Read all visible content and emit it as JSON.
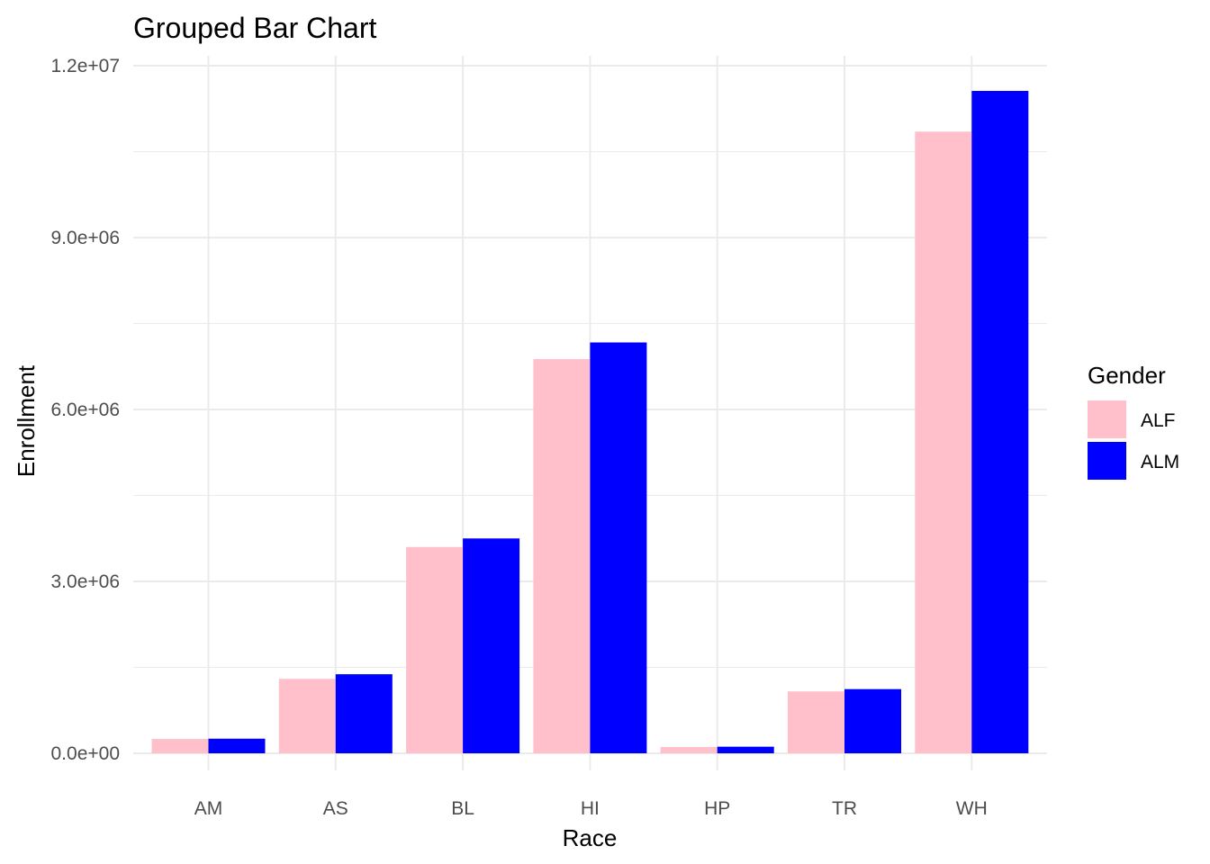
{
  "chart_data": {
    "type": "bar",
    "title": "Grouped Bar Chart",
    "xlabel": "Race",
    "ylabel": "Enrollment",
    "categories": [
      "AM",
      "AS",
      "BL",
      "HI",
      "HP",
      "TR",
      "WH"
    ],
    "series": [
      {
        "name": "ALF",
        "color": "#FFC0CB",
        "values": [
          250000,
          1300000,
          3600000,
          6880000,
          110000,
          1080000,
          10850000
        ]
      },
      {
        "name": "ALM",
        "color": "#0000FF",
        "values": [
          255000,
          1380000,
          3750000,
          7170000,
          115000,
          1120000,
          11560000
        ]
      }
    ],
    "ylim": [
      0,
      12000000
    ],
    "y_ticks": [
      {
        "value": 0,
        "label": "0.0e+00"
      },
      {
        "value": 3000000,
        "label": "3.0e+06"
      },
      {
        "value": 6000000,
        "label": "6.0e+06"
      },
      {
        "value": 9000000,
        "label": "9.0e+06"
      },
      {
        "value": 12000000,
        "label": "1.2e+07"
      }
    ],
    "grid": true,
    "legend": {
      "title": "Gender",
      "position": "right"
    }
  }
}
